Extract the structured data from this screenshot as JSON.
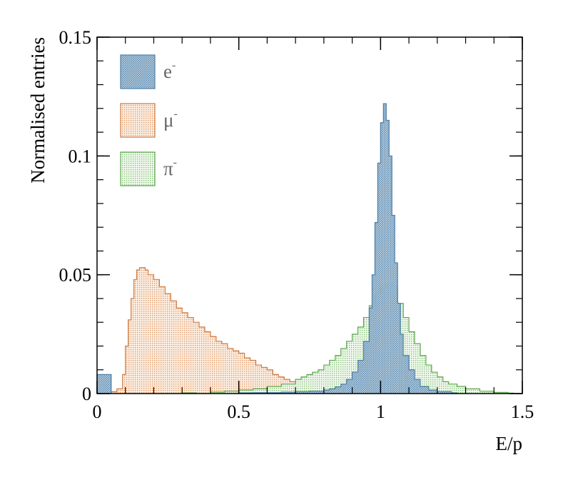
{
  "chart_data": {
    "type": "histogram",
    "xlabel": "E/p",
    "ylabel": "Normalised entries",
    "xlim": [
      0,
      1.5
    ],
    "ylim": [
      0,
      0.15
    ],
    "xticks": [
      0,
      0.5,
      1,
      1.5
    ],
    "xtick_labels": [
      "0",
      "0.5",
      "1",
      "1.5"
    ],
    "yticks": [
      0,
      0.05,
      0.1,
      0.15
    ],
    "ytick_labels": [
      "0",
      "0.05",
      "0.1",
      "0.15"
    ],
    "legend_placement": "top-left",
    "grid": false,
    "series": [
      {
        "name": "e",
        "superscript": "-",
        "color": "#4c7fa8",
        "fill": "#8fb0c8",
        "fill_pattern": "hatched",
        "bins": [
          [
            0.0,
            0.008
          ],
          [
            0.5,
            0.0003
          ],
          [
            0.55,
            0.0004
          ],
          [
            0.6,
            0.0004
          ],
          [
            0.65,
            0.0006
          ],
          [
            0.7,
            0.0008
          ],
          [
            0.75,
            0.001
          ],
          [
            0.8,
            0.0015
          ],
          [
            0.82,
            0.002
          ],
          [
            0.84,
            0.0028
          ],
          [
            0.86,
            0.004
          ],
          [
            0.88,
            0.006
          ],
          [
            0.9,
            0.009
          ],
          [
            0.92,
            0.014
          ],
          [
            0.94,
            0.022
          ],
          [
            0.96,
            0.036
          ],
          [
            0.97,
            0.05
          ],
          [
            0.98,
            0.072
          ],
          [
            0.99,
            0.097
          ],
          [
            1.0,
            0.114
          ],
          [
            1.01,
            0.122
          ],
          [
            1.02,
            0.115
          ],
          [
            1.03,
            0.1
          ],
          [
            1.04,
            0.075
          ],
          [
            1.05,
            0.055
          ],
          [
            1.06,
            0.038
          ],
          [
            1.07,
            0.025
          ],
          [
            1.08,
            0.016
          ],
          [
            1.1,
            0.01
          ],
          [
            1.12,
            0.006
          ],
          [
            1.14,
            0.003
          ],
          [
            1.17,
            0.0015
          ],
          [
            1.2,
            0.0008
          ],
          [
            1.25,
            0.0003
          ]
        ]
      },
      {
        "name": "μ",
        "superscript": "-",
        "color": "#d0783c",
        "fill": "#f0c9a8",
        "fill_pattern": "dotted",
        "bins": [
          [
            0.05,
            0.0008
          ],
          [
            0.07,
            0.002
          ],
          [
            0.09,
            0.008
          ],
          [
            0.1,
            0.02
          ],
          [
            0.11,
            0.031
          ],
          [
            0.12,
            0.04
          ],
          [
            0.13,
            0.048
          ],
          [
            0.14,
            0.052
          ],
          [
            0.15,
            0.053
          ],
          [
            0.16,
            0.053
          ],
          [
            0.17,
            0.052
          ],
          [
            0.18,
            0.05
          ],
          [
            0.2,
            0.048
          ],
          [
            0.22,
            0.045
          ],
          [
            0.24,
            0.042
          ],
          [
            0.26,
            0.039
          ],
          [
            0.28,
            0.036
          ],
          [
            0.3,
            0.034
          ],
          [
            0.32,
            0.032
          ],
          [
            0.34,
            0.03
          ],
          [
            0.36,
            0.028
          ],
          [
            0.38,
            0.026
          ],
          [
            0.4,
            0.024
          ],
          [
            0.42,
            0.022
          ],
          [
            0.44,
            0.021
          ],
          [
            0.46,
            0.019
          ],
          [
            0.48,
            0.018
          ],
          [
            0.5,
            0.017
          ],
          [
            0.52,
            0.015
          ],
          [
            0.54,
            0.014
          ],
          [
            0.56,
            0.012
          ],
          [
            0.58,
            0.011
          ],
          [
            0.6,
            0.01
          ],
          [
            0.62,
            0.008
          ],
          [
            0.64,
            0.007
          ],
          [
            0.66,
            0.006
          ],
          [
            0.68,
            0.005
          ],
          [
            0.7,
            0.0045
          ],
          [
            0.72,
            0.004
          ],
          [
            0.74,
            0.0035
          ],
          [
            0.76,
            0.003
          ],
          [
            0.78,
            0.0025
          ],
          [
            0.8,
            0.002
          ],
          [
            0.85,
            0.001
          ],
          [
            0.9,
            0.0005
          ],
          [
            1.0,
            0.0002
          ]
        ]
      },
      {
        "name": "π",
        "superscript": "-",
        "color": "#5aa84a",
        "fill": "#c8e4c0",
        "fill_pattern": "dotted",
        "bins": [
          [
            0.3,
            0.0003
          ],
          [
            0.4,
            0.0006
          ],
          [
            0.45,
            0.001
          ],
          [
            0.5,
            0.0015
          ],
          [
            0.55,
            0.002
          ],
          [
            0.6,
            0.003
          ],
          [
            0.65,
            0.004
          ],
          [
            0.7,
            0.006
          ],
          [
            0.72,
            0.007
          ],
          [
            0.74,
            0.008
          ],
          [
            0.76,
            0.009
          ],
          [
            0.78,
            0.01
          ],
          [
            0.8,
            0.012
          ],
          [
            0.82,
            0.014
          ],
          [
            0.84,
            0.016
          ],
          [
            0.86,
            0.019
          ],
          [
            0.88,
            0.022
          ],
          [
            0.9,
            0.025
          ],
          [
            0.92,
            0.028
          ],
          [
            0.94,
            0.032
          ],
          [
            0.96,
            0.037
          ],
          [
            0.98,
            0.042
          ],
          [
            1.0,
            0.045
          ],
          [
            1.02,
            0.046
          ],
          [
            1.04,
            0.045
          ],
          [
            1.06,
            0.038
          ],
          [
            1.08,
            0.032
          ],
          [
            1.1,
            0.026
          ],
          [
            1.12,
            0.021
          ],
          [
            1.14,
            0.016
          ],
          [
            1.16,
            0.012
          ],
          [
            1.18,
            0.009
          ],
          [
            1.2,
            0.007
          ],
          [
            1.22,
            0.005
          ],
          [
            1.24,
            0.004
          ],
          [
            1.27,
            0.003
          ],
          [
            1.3,
            0.002
          ],
          [
            1.35,
            0.001
          ],
          [
            1.4,
            0.0005
          ],
          [
            1.45,
            0.0002
          ]
        ]
      }
    ]
  }
}
